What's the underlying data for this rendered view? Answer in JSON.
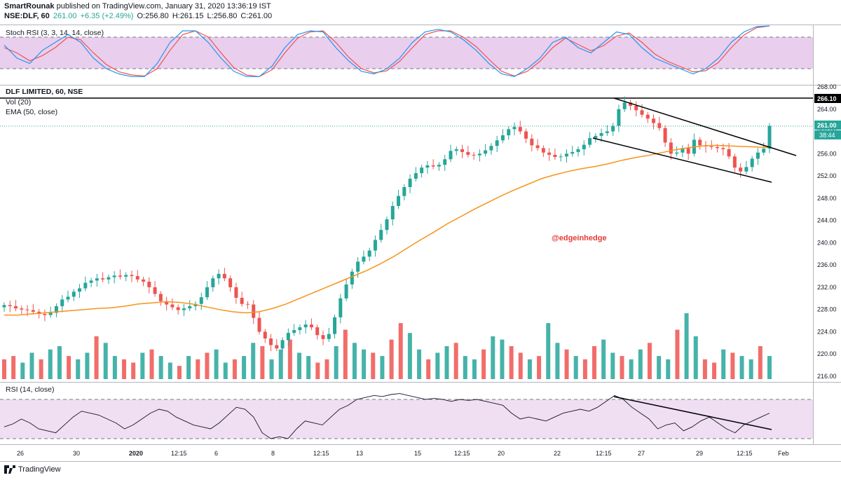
{
  "header": {
    "author": "SmartRounak",
    "published_text": " published on TradingView.com, January 31, 2020 13:36:19 IST",
    "symbol": "NSE:DLF, 60",
    "last_price": "261.00",
    "change": "+6.35 (+2.49%)",
    "open": "O:256.80",
    "high": "H:261.15",
    "low": "L:256.80",
    "close": "C:261.00"
  },
  "panes": {
    "stoch_label": "Stoch RSI (3, 3, 14, 14, close)",
    "main_title": "DLF LIMITED, 60, NSE",
    "vol_label": "Vol (20)",
    "ema_label": "EMA (50, close)",
    "rsi_label": "RSI (14, close)",
    "watermark": "@edgeinhedge"
  },
  "price_badges": {
    "resistance": "266.10",
    "last": "261.00",
    "countdown": "38:44"
  },
  "footer": {
    "brand": "TradingView"
  },
  "colors": {
    "up": "#26a69a",
    "down": "#ef5350",
    "ema": "#f7931a",
    "stoch_k": "#2196f3",
    "stoch_d": "#ef5350",
    "band": "#e1bee7",
    "watermark": "#e53935"
  },
  "chart_data": {
    "type": "line",
    "title": "DLF LIMITED, 60, NSE",
    "y_axis_ticks": [
      "268.00",
      "264.00",
      "260.00",
      "256.00",
      "252.00",
      "248.00",
      "244.00",
      "240.00",
      "236.00",
      "232.00",
      "228.00",
      "224.00",
      "220.00",
      "216.00"
    ],
    "x_axis_ticks": [
      "26",
      "30",
      "2020",
      "12:15",
      "6",
      "8",
      "12:15",
      "13",
      "15",
      "12:15",
      "20",
      "22",
      "12:15",
      "27",
      "29",
      "12:15",
      "Feb"
    ],
    "ylim": [
      215,
      269
    ],
    "series": [
      {
        "name": "DLF close (approx.)",
        "values": [
          228.8,
          228.6,
          228.2,
          228.0,
          227.9,
          227.6,
          227.2,
          227.0,
          227.4,
          228.6,
          229.8,
          230.3,
          231.2,
          231.8,
          232.8,
          233.2,
          233.6,
          233.4,
          233.8,
          234.1,
          233.9,
          234.2,
          234.0,
          233.4,
          233.0,
          232.0,
          230.8,
          229.5,
          228.9,
          228.4,
          227.9,
          228.2,
          228.6,
          229.0,
          230.2,
          232.0,
          233.6,
          234.4,
          233.6,
          232.0,
          230.1,
          229.0,
          228.9,
          226.5,
          224.0,
          222.8,
          221.6,
          221.0,
          222.5,
          223.8,
          224.3,
          224.8,
          225.3,
          224.8,
          223.4,
          222.7,
          223.6,
          226.6,
          230.0,
          232.5,
          234.8,
          236.6,
          237.5,
          238.6,
          240.5,
          242.3,
          244.2,
          246.6,
          248.4,
          250.0,
          251.5,
          252.5,
          253.5,
          253.9,
          253.7,
          254.0,
          255.0,
          256.5,
          256.8,
          256.3,
          255.8,
          255.7,
          256.0,
          256.6,
          257.4,
          258.4,
          259.3,
          260.4,
          260.8,
          260.0,
          258.7,
          257.5,
          257.0,
          256.2,
          255.8,
          255.4,
          255.5,
          256.0,
          256.3,
          256.8,
          257.6,
          258.8,
          259.2,
          259.7,
          260.0,
          261.0,
          264.0,
          265.2,
          264.6,
          263.8,
          263.0,
          262.3,
          261.5,
          260.6,
          258.0,
          256.0,
          256.2,
          257.0,
          256.0,
          258.5,
          257.5,
          257.3,
          257.2,
          257.0,
          256.8,
          255.5,
          253.5,
          252.8,
          253.6,
          255.1,
          256.2,
          256.9,
          261.0
        ]
      },
      {
        "name": "EMA (50, close)",
        "values": [
          227.0,
          227.0,
          227.2,
          227.4,
          227.6,
          227.8,
          228.0,
          228.2,
          228.3,
          228.6,
          229.0,
          229.2,
          229.4,
          229.3,
          229.0,
          228.5,
          228.0,
          227.6,
          227.4,
          227.6,
          228.2,
          229.0,
          230.0,
          231.0,
          232.0,
          233.0,
          234.0,
          235.0,
          236.2,
          237.5,
          239.0,
          240.5,
          241.9,
          243.4,
          244.7,
          246.0,
          247.2,
          248.4,
          249.5,
          250.5,
          251.5,
          252.2,
          252.8,
          253.3,
          253.7,
          254.2,
          254.8,
          255.3,
          255.7,
          256.2,
          256.7,
          257.1,
          257.4,
          257.5,
          257.4,
          257.3,
          257.2,
          257.1
        ]
      }
    ],
    "rsi_values": [
      42,
      45,
      50,
      46,
      40,
      38,
      36,
      44,
      52,
      58,
      56,
      54,
      50,
      46,
      40,
      44,
      50,
      56,
      60,
      58,
      52,
      48,
      44,
      42,
      40,
      46,
      54,
      62,
      60,
      52,
      36,
      30,
      32,
      30,
      40,
      48,
      46,
      44,
      52,
      60,
      64,
      70,
      72,
      74,
      73,
      75,
      76,
      74,
      72,
      70,
      71,
      70,
      68,
      70,
      69,
      70,
      68,
      66,
      64,
      56,
      50,
      52,
      50,
      48,
      52,
      56,
      58,
      60,
      58,
      62,
      68,
      74,
      70,
      62,
      56,
      50,
      40,
      44,
      46,
      38,
      42,
      48,
      52,
      46,
      40,
      36,
      44,
      48,
      52,
      56
    ],
    "rsi_levels": [
      70,
      30
    ],
    "volume_values": [
      12,
      14,
      10,
      16,
      12,
      18,
      20,
      14,
      12,
      16,
      26,
      22,
      14,
      12,
      10,
      16,
      18,
      14,
      10,
      8,
      14,
      12,
      16,
      18,
      10,
      12,
      14,
      22,
      20,
      12,
      18,
      24,
      16,
      14,
      10,
      12,
      20,
      30,
      22,
      18,
      16,
      14,
      24,
      34,
      28,
      18,
      12,
      16,
      20,
      22,
      14,
      12,
      18,
      26,
      24,
      20,
      16,
      12,
      14,
      34,
      22,
      18,
      14,
      12,
      20,
      24,
      16,
      14,
      12,
      18,
      22,
      14,
      12,
      30,
      40,
      26,
      12,
      10,
      18,
      16,
      14,
      12,
      20,
      14
    ],
    "stoch_k": [
      65,
      40,
      30,
      55,
      70,
      85,
      70,
      40,
      20,
      10,
      5,
      5,
      30,
      70,
      92,
      92,
      70,
      40,
      15,
      5,
      5,
      25,
      60,
      85,
      92,
      90,
      60,
      35,
      15,
      10,
      20,
      40,
      70,
      90,
      95,
      90,
      75,
      55,
      30,
      10,
      5,
      20,
      40,
      70,
      80,
      60,
      50,
      70,
      90,
      85,
      60,
      40,
      30,
      20,
      10,
      20,
      40,
      70,
      90,
      100,
      120
    ],
    "stoch_d": [
      60,
      50,
      35,
      45,
      60,
      80,
      75,
      50,
      28,
      14,
      8,
      6,
      20,
      55,
      85,
      92,
      80,
      50,
      22,
      8,
      5,
      18,
      50,
      78,
      90,
      92,
      70,
      42,
      20,
      12,
      16,
      34,
      60,
      85,
      92,
      92,
      80,
      62,
      38,
      15,
      6,
      15,
      34,
      60,
      78,
      66,
      54,
      64,
      82,
      88,
      70,
      48,
      34,
      24,
      14,
      16,
      32,
      60,
      84,
      98,
      110
    ]
  }
}
